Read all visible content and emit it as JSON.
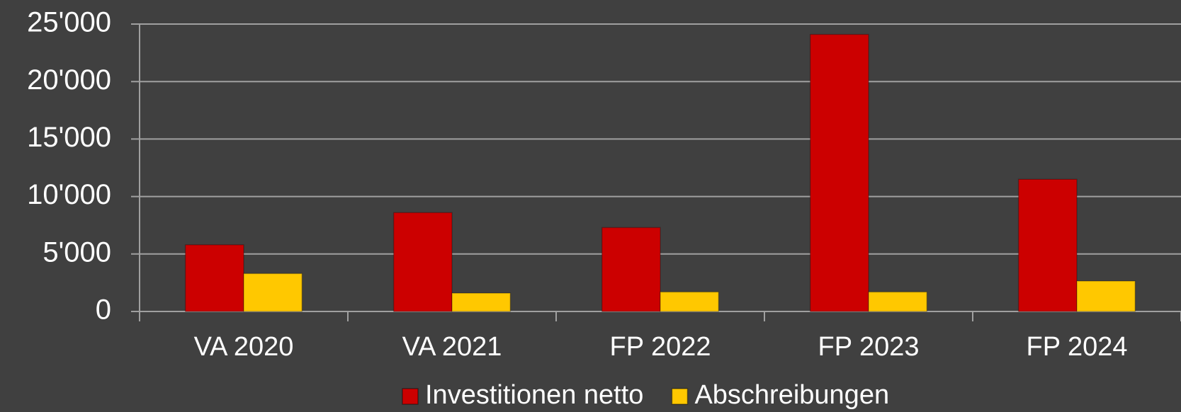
{
  "chart_data": {
    "type": "bar",
    "categories": [
      "VA 2020",
      "VA 2021",
      "FP 2022",
      "FP 2023",
      "FP 2024"
    ],
    "series": [
      {
        "name": "Investitionen netto",
        "color": "#cc0000",
        "values": [
          5800,
          8600,
          7300,
          24100,
          11500
        ]
      },
      {
        "name": "Abschreibungen",
        "color": "#ffc800",
        "values": [
          3300,
          1600,
          1700,
          1700,
          2650
        ]
      }
    ],
    "ylim": [
      0,
      25000
    ],
    "yticks": [
      0,
      {
        "value": 5000,
        "label": "5'000"
      },
      {
        "value": 10000,
        "label": "10'000"
      },
      {
        "value": 15000,
        "label": "15'000"
      },
      {
        "value": 20000,
        "label": "20'000"
      },
      {
        "value": 25000,
        "label": "25'000"
      }
    ],
    "grid": true,
    "legend": "bottom"
  }
}
